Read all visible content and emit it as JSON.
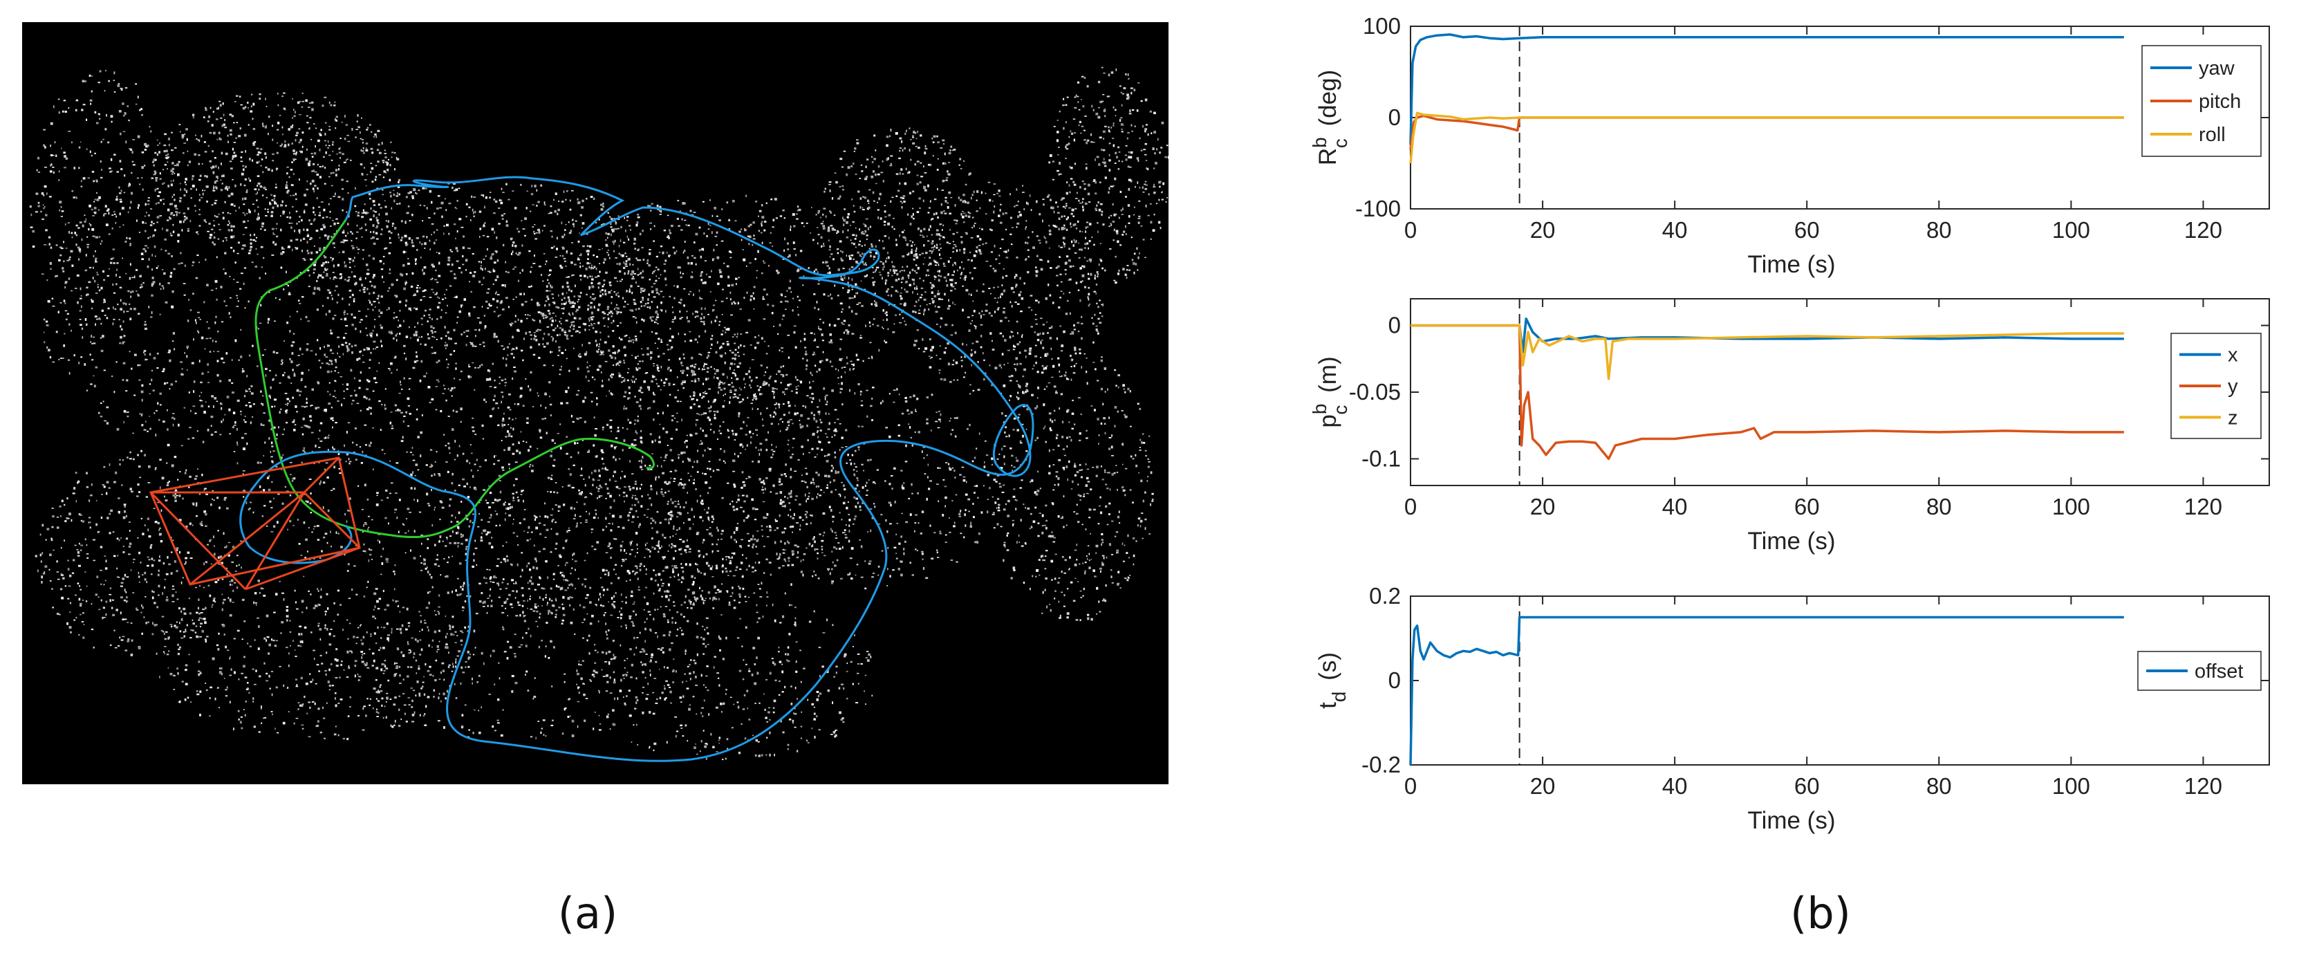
{
  "panel_labels": {
    "a": "(a)",
    "b": "(b)"
  },
  "colors": {
    "blue": "#0072BD",
    "orange": "#D95319",
    "yellow": "#EDB120",
    "green": "#2ECC2E",
    "traj_blue": "#1E9BE6",
    "frame_red": "#E8451E",
    "map_bg": "#000000"
  },
  "chart_data": [
    {
      "type": "line",
      "xlabel": "Time (s)",
      "ylabel_main": "R",
      "ylabel_sup": "b",
      "ylabel_sub": "c",
      "ylabel_unit": "(deg)",
      "xlim": [
        0,
        130
      ],
      "ylim": [
        -100,
        100
      ],
      "xticks": [
        0,
        20,
        40,
        60,
        80,
        100,
        120
      ],
      "yticks": [
        100,
        0,
        -100
      ],
      "vline_x": 16.5,
      "legend_position": "top-right",
      "series": [
        {
          "name": "yaw",
          "color": "#0072BD",
          "points": [
            [
              0,
              -30
            ],
            [
              0.3,
              60
            ],
            [
              0.8,
              78
            ],
            [
              1.5,
              85
            ],
            [
              2.5,
              88
            ],
            [
              4,
              90
            ],
            [
              6,
              91
            ],
            [
              8,
              88
            ],
            [
              10,
              89
            ],
            [
              12,
              87
            ],
            [
              14,
              86
            ],
            [
              16.5,
              87
            ],
            [
              20,
              88
            ],
            [
              40,
              88
            ],
            [
              60,
              88
            ],
            [
              80,
              88
            ],
            [
              108,
              88
            ]
          ]
        },
        {
          "name": "pitch",
          "color": "#D95319",
          "points": [
            [
              0,
              -35
            ],
            [
              0.5,
              -5
            ],
            [
              1,
              0
            ],
            [
              2,
              2
            ],
            [
              4,
              -2
            ],
            [
              6,
              -3
            ],
            [
              8,
              -4
            ],
            [
              10,
              -6
            ],
            [
              12,
              -8
            ],
            [
              14,
              -10
            ],
            [
              16.2,
              -14
            ],
            [
              16.5,
              0
            ],
            [
              40,
              0
            ],
            [
              80,
              0
            ],
            [
              108,
              0
            ]
          ]
        },
        {
          "name": "roll",
          "color": "#EDB120",
          "points": [
            [
              0,
              -50
            ],
            [
              0.4,
              -20
            ],
            [
              1,
              5
            ],
            [
              2,
              3
            ],
            [
              4,
              2
            ],
            [
              6,
              1
            ],
            [
              8,
              -2
            ],
            [
              10,
              -1
            ],
            [
              12,
              0
            ],
            [
              14,
              -1
            ],
            [
              16.5,
              0
            ],
            [
              40,
              0
            ],
            [
              80,
              0
            ],
            [
              108,
              0
            ]
          ]
        }
      ]
    },
    {
      "type": "line",
      "xlabel": "Time (s)",
      "ylabel_main": "p",
      "ylabel_sup": "b",
      "ylabel_sub": "c",
      "ylabel_unit": "(m)",
      "xlim": [
        0,
        130
      ],
      "ylim": [
        -0.12,
        0.02
      ],
      "xticks": [
        0,
        20,
        40,
        60,
        80,
        100,
        120
      ],
      "yticks": [
        0,
        -0.05,
        -0.1
      ],
      "ytick_labels": [
        "0",
        "-0.05",
        "-0.1"
      ],
      "vline_x": 16.5,
      "legend_position": "right",
      "series": [
        {
          "name": "x",
          "color": "#0072BD",
          "points": [
            [
              0,
              0
            ],
            [
              16.5,
              0
            ],
            [
              17,
              -0.02
            ],
            [
              17.5,
              0.005
            ],
            [
              18.5,
              -0.005
            ],
            [
              20,
              -0.012
            ],
            [
              22,
              -0.01
            ],
            [
              25,
              -0.01
            ],
            [
              28,
              -0.008
            ],
            [
              30,
              -0.01
            ],
            [
              35,
              -0.009
            ],
            [
              40,
              -0.009
            ],
            [
              50,
              -0.01
            ],
            [
              60,
              -0.01
            ],
            [
              70,
              -0.009
            ],
            [
              80,
              -0.01
            ],
            [
              90,
              -0.009
            ],
            [
              100,
              -0.01
            ],
            [
              108,
              -0.01
            ]
          ]
        },
        {
          "name": "y",
          "color": "#D95319",
          "points": [
            [
              0,
              0
            ],
            [
              16.5,
              0
            ],
            [
              16.8,
              -0.09
            ],
            [
              17.2,
              -0.06
            ],
            [
              17.8,
              -0.05
            ],
            [
              18.5,
              -0.085
            ],
            [
              19.5,
              -0.09
            ],
            [
              20.5,
              -0.097
            ],
            [
              22,
              -0.088
            ],
            [
              24,
              -0.087
            ],
            [
              26,
              -0.087
            ],
            [
              28,
              -0.088
            ],
            [
              30,
              -0.1
            ],
            [
              31,
              -0.09
            ],
            [
              35,
              -0.085
            ],
            [
              40,
              -0.085
            ],
            [
              45,
              -0.082
            ],
            [
              50,
              -0.08
            ],
            [
              52,
              -0.077
            ],
            [
              53,
              -0.085
            ],
            [
              55,
              -0.08
            ],
            [
              60,
              -0.08
            ],
            [
              70,
              -0.079
            ],
            [
              80,
              -0.08
            ],
            [
              90,
              -0.079
            ],
            [
              100,
              -0.08
            ],
            [
              108,
              -0.08
            ]
          ]
        },
        {
          "name": "z",
          "color": "#EDB120",
          "points": [
            [
              0,
              0
            ],
            [
              16.5,
              0
            ],
            [
              17,
              -0.03
            ],
            [
              17.8,
              -0.005
            ],
            [
              18.5,
              -0.02
            ],
            [
              19.5,
              -0.01
            ],
            [
              21,
              -0.015
            ],
            [
              24,
              -0.008
            ],
            [
              26,
              -0.012
            ],
            [
              28,
              -0.01
            ],
            [
              29.5,
              -0.01
            ],
            [
              30,
              -0.04
            ],
            [
              30.6,
              -0.012
            ],
            [
              33,
              -0.01
            ],
            [
              40,
              -0.01
            ],
            [
              50,
              -0.009
            ],
            [
              60,
              -0.008
            ],
            [
              70,
              -0.009
            ],
            [
              80,
              -0.008
            ],
            [
              90,
              -0.007
            ],
            [
              100,
              -0.006
            ],
            [
              108,
              -0.006
            ]
          ]
        }
      ]
    },
    {
      "type": "line",
      "xlabel": "Time (s)",
      "ylabel_main": "t",
      "ylabel_sub": "d",
      "ylabel_unit": "(s)",
      "xlim": [
        0,
        130
      ],
      "ylim": [
        -0.2,
        0.2
      ],
      "xticks": [
        0,
        20,
        40,
        60,
        80,
        100,
        120
      ],
      "yticks": [
        0.2,
        0,
        -0.2
      ],
      "ytick_labels": [
        "0.2",
        "0",
        "-0.2"
      ],
      "vline_x": 16.5,
      "legend_position": "right",
      "series": [
        {
          "name": "offset",
          "color": "#0072BD",
          "points": [
            [
              0,
              -0.2
            ],
            [
              0.3,
              0.05
            ],
            [
              0.6,
              0.12
            ],
            [
              1,
              0.13
            ],
            [
              1.5,
              0.07
            ],
            [
              2,
              0.05
            ],
            [
              3,
              0.09
            ],
            [
              4,
              0.07
            ],
            [
              5,
              0.06
            ],
            [
              6,
              0.055
            ],
            [
              7,
              0.065
            ],
            [
              8,
              0.07
            ],
            [
              9,
              0.068
            ],
            [
              10,
              0.075
            ],
            [
              11,
              0.07
            ],
            [
              12,
              0.065
            ],
            [
              13,
              0.068
            ],
            [
              14,
              0.06
            ],
            [
              15,
              0.065
            ],
            [
              16.3,
              0.06
            ],
            [
              16.5,
              0.15
            ],
            [
              20,
              0.15
            ],
            [
              40,
              0.15
            ],
            [
              60,
              0.15
            ],
            [
              80,
              0.15
            ],
            [
              108,
              0.15
            ]
          ]
        }
      ]
    }
  ]
}
